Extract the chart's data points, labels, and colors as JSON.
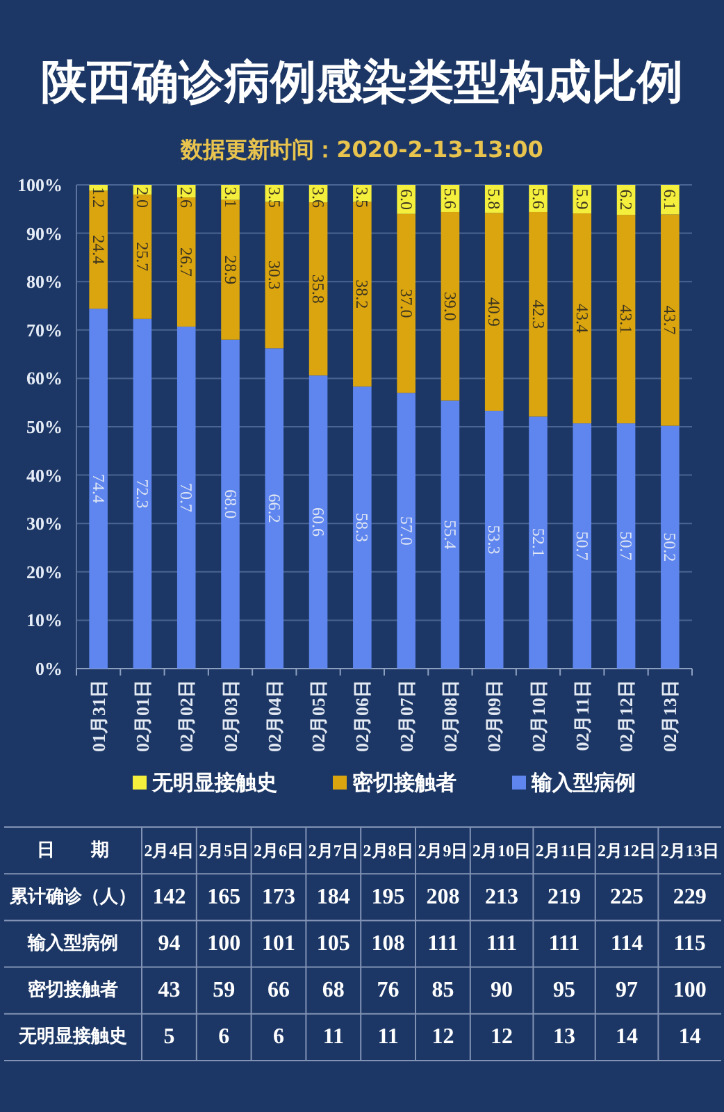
{
  "chart_data": [
    {
      "type": "bar",
      "title": "陕西确诊病例感染类型构成比例",
      "subtitle": "数据更新时间：2020-2-13-13:00",
      "categories": [
        "01月31日",
        "02月01日",
        "02月02日",
        "02月03日",
        "02月04日",
        "02月05日",
        "02月06日",
        "02月07日",
        "02月08日",
        "02月09日",
        "02月10日",
        "02月11日",
        "02月12日",
        "02月13日"
      ],
      "stacked": true,
      "ylim": [
        0,
        100
      ],
      "yticks": [
        {
          "value": 0,
          "label": "0%"
        },
        {
          "value": 10,
          "label": "10%"
        },
        {
          "value": 20,
          "label": "20%"
        },
        {
          "value": 30,
          "label": "30%"
        },
        {
          "value": 40,
          "label": "40%"
        },
        {
          "value": 50,
          "label": "50%"
        },
        {
          "value": 60,
          "label": "60%"
        },
        {
          "value": 70,
          "label": "70%"
        },
        {
          "value": 80,
          "label": "80%"
        },
        {
          "value": 90,
          "label": "90%"
        },
        {
          "value": 100,
          "label": "100%"
        }
      ],
      "grid": "y",
      "legend": "bottom",
      "series": [
        {
          "name": "输入型病例",
          "color": "#5f86ee",
          "values": [
            74.4,
            72.3,
            70.7,
            68.0,
            66.2,
            60.6,
            58.3,
            57.0,
            55.4,
            53.3,
            52.1,
            50.7,
            50.7,
            50.2
          ],
          "value_labels": [
            "74.4",
            "72.3",
            "70.7",
            "68.0",
            "66.2",
            "60.6",
            "58.3",
            "57.0",
            "55.4",
            "53.3",
            "52.1",
            "50.7",
            "50.7",
            "50.2"
          ]
        },
        {
          "name": "密切接触者",
          "color": "#dba50f",
          "values": [
            24.4,
            25.7,
            26.7,
            28.9,
            30.3,
            35.8,
            38.2,
            37.0,
            39.0,
            40.9,
            42.3,
            43.4,
            43.1,
            43.7
          ],
          "value_labels": [
            "24.4",
            "25.7",
            "26.7",
            "28.9",
            "30.3",
            "35.8",
            "38.2",
            "37.0",
            "39.0",
            "40.9",
            "42.3",
            "43.4",
            "43.1",
            "43.7"
          ]
        },
        {
          "name": "无明显接触史",
          "color": "#f4ef3c",
          "values": [
            1.2,
            2.0,
            2.6,
            3.1,
            3.5,
            3.6,
            3.5,
            6.0,
            5.6,
            5.8,
            5.6,
            5.9,
            6.2,
            6.1
          ],
          "value_labels": [
            "1.2",
            "2.0",
            "2.6",
            "3.1",
            "3.5",
            "3.6",
            "3.5",
            "6.0",
            "5.6",
            "5.8",
            "5.6",
            "5.9",
            "6.2",
            "6.1"
          ]
        }
      ]
    },
    {
      "type": "other",
      "xlabel": "日　　期",
      "categories": [
        "2月4日",
        "2月5日",
        "2月6日",
        "2月7日",
        "2月8日",
        "2月9日",
        "2月10日",
        "2月11日",
        "2月12日",
        "2月13日"
      ],
      "data_labels": true,
      "series": [
        {
          "name": "累计确诊（人）",
          "values": [
            142,
            165,
            173,
            184,
            195,
            208,
            213,
            219,
            225,
            229
          ]
        },
        {
          "name": "输入型病例",
          "values": [
            94,
            100,
            101,
            105,
            108,
            111,
            111,
            111,
            114,
            115
          ]
        },
        {
          "name": "密切接触者",
          "values": [
            43,
            59,
            66,
            68,
            76,
            85,
            90,
            95,
            97,
            100
          ]
        },
        {
          "name": "无明显接触史",
          "values": [
            5,
            6,
            6,
            11,
            11,
            12,
            12,
            13,
            14,
            14
          ]
        }
      ]
    }
  ]
}
